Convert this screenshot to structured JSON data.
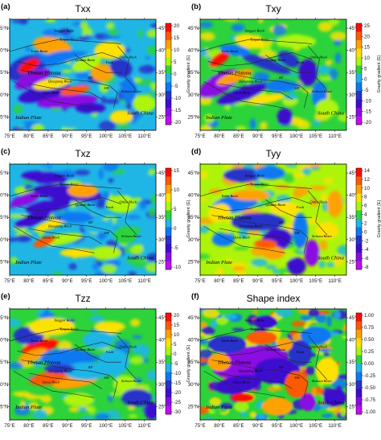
{
  "figure": {
    "panels": [
      {
        "letter": "(a)",
        "title": "Txx",
        "cb_label": "Gravity gradient (E)",
        "cb_ticks": [
          "20",
          "15",
          "10",
          "5",
          "0",
          "-5",
          "-10",
          "-15",
          "-20"
        ],
        "palette": [
          "#fb0b04",
          "#fc5a02",
          "#ffa101",
          "#fde105",
          "#aef40a",
          "#2cd33a",
          "#1fb6e6",
          "#0e78f2",
          "#2832c8",
          "#3d0ccf",
          "#8a0be2",
          "#c00cf0"
        ]
      },
      {
        "letter": "(b)",
        "title": "Txy",
        "cb_label": "Gravity gradient (E)",
        "cb_ticks": [
          "25",
          "20",
          "15",
          "10",
          "5",
          "0",
          "-5",
          "-10",
          "-15",
          "-20"
        ],
        "palette": [
          "#fb0b04",
          "#fc5a02",
          "#ffa101",
          "#fde105",
          "#aef40a",
          "#2cd33a",
          "#1fb6e6",
          "#0e78f2",
          "#2832c8",
          "#3d0ccf",
          "#8a0be2",
          "#c00cf0"
        ]
      },
      {
        "letter": "(c)",
        "title": "Txz",
        "cb_label": "Gravity gradient (E)",
        "cb_ticks": [
          "15",
          "10",
          "5",
          "0",
          "-5",
          "-10"
        ],
        "palette": [
          "#fb0b04",
          "#fc5a02",
          "#ffa101",
          "#fde105",
          "#aef40a",
          "#2cd33a",
          "#1fb6e6",
          "#0e78f2",
          "#2832c8",
          "#3d0ccf",
          "#8a0be2",
          "#c00cf0"
        ]
      },
      {
        "letter": "(d)",
        "title": "Tyy",
        "cb_label": "Gravity gradient (E)",
        "cb_ticks": [
          "14",
          "12",
          "10",
          "8",
          "6",
          "4",
          "2",
          "0",
          "-2",
          "-4",
          "-6",
          "-8"
        ],
        "palette": [
          "#fb0b04",
          "#fc5a02",
          "#ffa101",
          "#fde105",
          "#aef40a",
          "#2cd33a",
          "#1fb6e6",
          "#0e78f2",
          "#2832c8",
          "#3d0ccf",
          "#8a0be2",
          "#c00cf0"
        ]
      },
      {
        "letter": "(e)",
        "title": "Tzz",
        "cb_label": "Gravity gradient (E)",
        "cb_ticks": [
          "20",
          "15",
          "10",
          "5",
          "0",
          "-5",
          "-10",
          "-15",
          "-20",
          "-25",
          "-30"
        ],
        "palette": [
          "#fb0b04",
          "#fc5a02",
          "#ffa101",
          "#fde105",
          "#aef40a",
          "#2cd33a",
          "#1fb6e6",
          "#0e78f2",
          "#2832c8",
          "#3d0ccf",
          "#8a0be2",
          "#c00cf0"
        ]
      },
      {
        "letter": "(f)",
        "title": "Shape index",
        "cb_label": "",
        "cb_ticks": [
          "1.00",
          "0.75",
          "0.50",
          "0.25",
          "0.00",
          "-0.25",
          "-0.50",
          "-0.75",
          "-1.00"
        ],
        "palette": [
          "#fb0b04",
          "#fc5a02",
          "#ffa101",
          "#fde105",
          "#aef40a",
          "#2cd33a",
          "#1fb6e6",
          "#0e78f2",
          "#2832c8",
          "#3d0ccf",
          "#8a0be2",
          "#c00cf0"
        ]
      }
    ],
    "x_ticks": [
      "75°E",
      "80°E",
      "85°E",
      "90°E",
      "95°E",
      "100°E",
      "105°E",
      "110°E"
    ],
    "y_ticks": [
      "45°N",
      "40°N",
      "35°N",
      "30°N",
      "25°N"
    ],
    "map_labels": {
      "tarim": "Tarim Basin",
      "junggar": "Junggar Basin",
      "turpan": "Turpan Basin",
      "qaidam": "Qaidam Basin",
      "tibetan": "Tibetan Plateau",
      "qiangtang": "Qiangtang Block",
      "lhasa": "Lhasa Block",
      "ordos": "Ordos Block",
      "sichuan": "Sichuan Basin",
      "indian": "Indian Plate",
      "southchina": "South China",
      "fault": "Fault",
      "kf": "KF",
      "ssf": "SSF"
    }
  },
  "chart_data": [
    {
      "type": "heatmap",
      "title": "Txx",
      "colorbar_label": "Gravity gradient (E)",
      "colorbar_range": [
        -20,
        20
      ],
      "xlim": [
        75,
        113
      ],
      "ylim": [
        22,
        47
      ],
      "x_ticks": [
        "75°E",
        "80°E",
        "85°E",
        "90°E",
        "95°E",
        "100°E",
        "105°E",
        "110°E"
      ],
      "y_ticks": [
        "45°N",
        "40°N",
        "35°N",
        "30°N",
        "25°N"
      ]
    },
    {
      "type": "heatmap",
      "title": "Txy",
      "colorbar_label": "Gravity gradient (E)",
      "colorbar_range": [
        -20,
        25
      ],
      "xlim": [
        75,
        113
      ],
      "ylim": [
        22,
        47
      ],
      "x_ticks": [
        "75°E",
        "80°E",
        "85°E",
        "90°E",
        "95°E",
        "100°E",
        "105°E",
        "110°E"
      ],
      "y_ticks": [
        "45°N",
        "40°N",
        "35°N",
        "30°N",
        "25°N"
      ]
    },
    {
      "type": "heatmap",
      "title": "Txz",
      "colorbar_label": "Gravity gradient (E)",
      "colorbar_range": [
        -10,
        15
      ],
      "xlim": [
        75,
        113
      ],
      "ylim": [
        22,
        47
      ],
      "x_ticks": [
        "75°E",
        "80°E",
        "85°E",
        "90°E",
        "95°E",
        "100°E",
        "105°E",
        "110°E"
      ],
      "y_ticks": [
        "45°N",
        "40°N",
        "35°N",
        "30°N",
        "25°N"
      ]
    },
    {
      "type": "heatmap",
      "title": "Tyy",
      "colorbar_label": "Gravity gradient (E)",
      "colorbar_range": [
        -8,
        14
      ],
      "xlim": [
        75,
        113
      ],
      "ylim": [
        22,
        47
      ],
      "x_ticks": [
        "75°E",
        "80°E",
        "85°E",
        "90°E",
        "95°E",
        "100°E",
        "105°E",
        "110°E"
      ],
      "y_ticks": [
        "45°N",
        "40°N",
        "35°N",
        "30°N",
        "25°N"
      ]
    },
    {
      "type": "heatmap",
      "title": "Tzz",
      "colorbar_label": "Gravity gradient (E)",
      "colorbar_range": [
        -30,
        20
      ],
      "xlim": [
        75,
        113
      ],
      "ylim": [
        22,
        47
      ],
      "x_ticks": [
        "75°E",
        "80°E",
        "85°E",
        "90°E",
        "95°E",
        "100°E",
        "105°E",
        "110°E"
      ],
      "y_ticks": [
        "45°N",
        "40°N",
        "35°N",
        "30°N",
        "25°N"
      ]
    },
    {
      "type": "heatmap",
      "title": "Shape index",
      "colorbar_range": [
        -1.0,
        1.0
      ],
      "xlim": [
        75,
        113
      ],
      "ylim": [
        22,
        47
      ],
      "x_ticks": [
        "75°E",
        "80°E",
        "85°E",
        "90°E",
        "95°E",
        "100°E",
        "105°E",
        "110°E"
      ],
      "y_ticks": [
        "45°N",
        "40°N",
        "35°N",
        "30°N",
        "25°N"
      ]
    }
  ]
}
